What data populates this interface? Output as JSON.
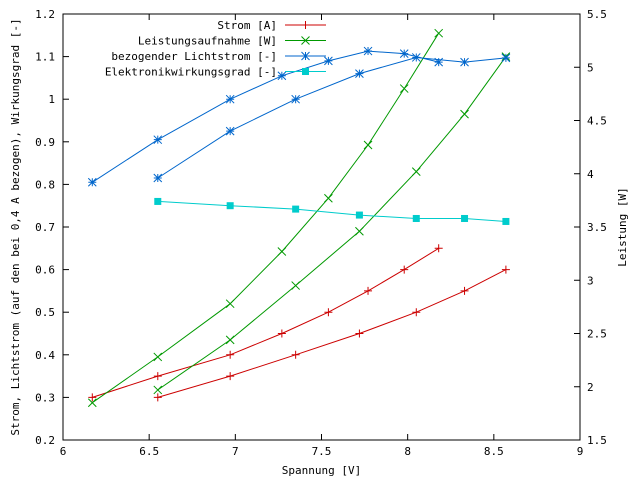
{
  "chart_data": {
    "type": "line",
    "title": "",
    "xlabel": "Spannung [V]",
    "ylabel_left": "Strom, Lichtstrom (auf den bei 0,4 A bezogen), Wirkungsgrad [-]",
    "ylabel_right": "Leistung [W]",
    "xlim": [
      6,
      9
    ],
    "ylim_left": [
      0.2,
      1.2
    ],
    "ylim_right": [
      1.5,
      5.5
    ],
    "x_ticks": [
      "6",
      "6.5",
      "7",
      "7.5",
      "8",
      "8.5",
      "9"
    ],
    "y_left_ticks": [
      "0.2",
      "0.3",
      "0.4",
      "0.5",
      "0.6",
      "0.7",
      "0.8",
      "0.9",
      "1",
      "1.1",
      "1.2"
    ],
    "y_right_ticks": [
      "1.5",
      "2",
      "2.5",
      "3",
      "3.5",
      "4",
      "4.5",
      "5",
      "5.5"
    ],
    "grid": false,
    "legend_position": "top-left",
    "series": [
      {
        "name": "Strom [A]",
        "axis": "left",
        "color": "#cc0000",
        "marker": "plus",
        "segments": [
          {
            "x": [
              6.17,
              6.55,
              6.97,
              7.27,
              7.54,
              7.77,
              7.98,
              8.18
            ],
            "y": [
              0.3,
              0.35,
              0.4,
              0.45,
              0.5,
              0.55,
              0.6,
              0.65
            ]
          },
          {
            "x": [
              6.55,
              6.97,
              7.35,
              7.72,
              8.05,
              8.33,
              8.57
            ],
            "y": [
              0.3,
              0.35,
              0.4,
              0.45,
              0.5,
              0.55,
              0.6
            ]
          }
        ]
      },
      {
        "name": "Leistungsaufnahme [W]",
        "axis": "right",
        "color": "#009900",
        "marker": "x",
        "segments": [
          {
            "x": [
              6.17,
              6.55,
              6.97,
              7.27,
              7.54,
              7.77,
              7.98,
              8.18
            ],
            "y": [
              1.85,
              2.28,
              2.78,
              3.27,
              3.77,
              4.27,
              4.8,
              5.32
            ]
          },
          {
            "x": [
              6.55,
              6.97,
              7.35,
              7.72,
              8.05,
              8.33,
              8.57
            ],
            "y": [
              1.97,
              2.44,
              2.95,
              3.46,
              4.02,
              4.56,
              5.1
            ]
          }
        ]
      },
      {
        "name": "bezogender Lichtstrom [-]",
        "axis": "left",
        "color": "#0066cc",
        "marker": "star",
        "segments": [
          {
            "x": [
              6.17,
              6.55,
              6.97,
              7.27,
              7.54,
              7.77,
              7.98,
              8.18
            ],
            "y": [
              0.805,
              0.905,
              1.0,
              1.055,
              1.09,
              1.113,
              1.107,
              1.087
            ]
          },
          {
            "x": [
              6.55,
              6.97,
              7.35,
              7.72,
              8.05,
              8.33,
              8.57
            ],
            "y": [
              0.815,
              0.925,
              1.0,
              1.06,
              1.098,
              1.087,
              1.097
            ]
          }
        ]
      },
      {
        "name": "Elektronikwirkungsgrad [-]",
        "axis": "left",
        "color": "#00cccc",
        "marker": "square",
        "segments": [
          {
            "x": [
              6.55,
              6.97,
              7.35,
              7.72,
              8.05,
              8.33,
              8.57
            ],
            "y": [
              0.76,
              0.75,
              0.742,
              0.728,
              0.72,
              0.72,
              0.713
            ]
          }
        ]
      }
    ]
  }
}
